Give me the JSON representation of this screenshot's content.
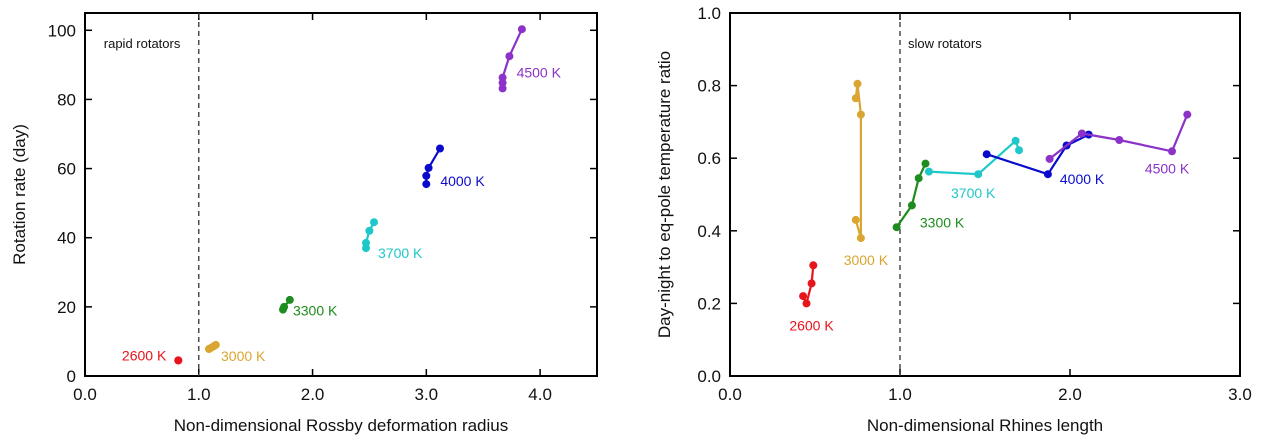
{
  "chart_data": [
    {
      "type": "line",
      "xlabel": "Non-dimensional Rossby deformation radius",
      "ylabel": "Rotation rate (day)",
      "xlim": [
        0.0,
        4.5
      ],
      "ylim": [
        0,
        105
      ],
      "xticks": [
        "0.0",
        "1.0",
        "2.0",
        "3.0",
        "4.0"
      ],
      "xtick_values": [
        0,
        1,
        2,
        3,
        4
      ],
      "yticks": [
        "0",
        "20",
        "40",
        "60",
        "80",
        "100"
      ],
      "ytick_values": [
        0,
        20,
        40,
        60,
        80,
        100
      ],
      "reference_line": {
        "x": 1.0,
        "style": "dashed",
        "label": "rapid rotators"
      },
      "grid": false,
      "series": [
        {
          "name": "2600 K",
          "color": "#e8141c",
          "points": [
            [
              0.82,
              4.5
            ],
            [
              0.82,
              4.5
            ]
          ]
        },
        {
          "name": "3000 K",
          "color": "#daa530",
          "points": [
            [
              1.09,
              7.8
            ],
            [
              1.11,
              8.2
            ],
            [
              1.13,
              8.6
            ],
            [
              1.15,
              9.0
            ]
          ]
        },
        {
          "name": "3300 K",
          "color": "#1e8c1e",
          "points": [
            [
              1.74,
              19.2
            ],
            [
              1.75,
              20.0
            ],
            [
              1.8,
              22.0
            ]
          ]
        },
        {
          "name": "3700 K",
          "color": "#1ec8c8",
          "points": [
            [
              2.47,
              37.0
            ],
            [
              2.47,
              38.5
            ],
            [
              2.5,
              42.0
            ],
            [
              2.54,
              44.5
            ]
          ]
        },
        {
          "name": "4000 K",
          "color": "#0a0acd",
          "points": [
            [
              3.0,
              55.5
            ],
            [
              3.0,
              57.9
            ],
            [
              3.02,
              60.2
            ],
            [
              3.12,
              65.8
            ]
          ]
        },
        {
          "name": "4500 K",
          "color": "#8c32c8",
          "points": [
            [
              3.67,
              83.2
            ],
            [
              3.67,
              84.8
            ],
            [
              3.67,
              86.3
            ],
            [
              3.73,
              92.5
            ],
            [
              3.84,
              100.3
            ]
          ]
        }
      ]
    },
    {
      "type": "line",
      "xlabel": "Non-dimensional Rhines length",
      "ylabel": "Day-night to eq-pole temperature ratio",
      "xlim": [
        0.0,
        3.0
      ],
      "ylim": [
        0.0,
        1.0
      ],
      "xticks": [
        "0.0",
        "1.0",
        "2.0",
        "3.0"
      ],
      "xtick_values": [
        0,
        1,
        2,
        3
      ],
      "yticks": [
        "0.0",
        "0.2",
        "0.4",
        "0.6",
        "0.8",
        "1.0"
      ],
      "ytick_values": [
        0,
        0.2,
        0.4,
        0.6,
        0.8,
        1.0
      ],
      "reference_line": {
        "x": 1.0,
        "style": "dashed",
        "label": "slow rotators"
      },
      "grid": false,
      "series": [
        {
          "name": "2600 K",
          "color": "#e8141c",
          "points": [
            [
              0.43,
              0.22
            ],
            [
              0.45,
              0.2
            ],
            [
              0.48,
              0.255
            ],
            [
              0.49,
              0.305
            ]
          ]
        },
        {
          "name": "3000 K",
          "color": "#daa530",
          "points": [
            [
              0.74,
              0.765
            ],
            [
              0.75,
              0.805
            ],
            [
              0.77,
              0.72
            ],
            [
              0.77,
              0.38
            ],
            [
              0.74,
              0.43
            ]
          ]
        },
        {
          "name": "3300 K",
          "color": "#1e8c1e",
          "points": [
            [
              0.98,
              0.41
            ],
            [
              1.07,
              0.47
            ],
            [
              1.11,
              0.545
            ],
            [
              1.15,
              0.585
            ]
          ]
        },
        {
          "name": "3700 K",
          "color": "#1ec8c8",
          "points": [
            [
              1.17,
              0.563
            ],
            [
              1.46,
              0.556
            ],
            [
              1.68,
              0.648
            ],
            [
              1.7,
              0.622
            ]
          ]
        },
        {
          "name": "4000 K",
          "color": "#0a0acd",
          "points": [
            [
              1.51,
              0.611
            ],
            [
              1.87,
              0.556
            ],
            [
              1.98,
              0.635
            ],
            [
              2.11,
              0.665
            ]
          ]
        },
        {
          "name": "4500 K",
          "color": "#8c32c8",
          "points": [
            [
              1.88,
              0.598
            ],
            [
              2.07,
              0.668
            ],
            [
              2.29,
              0.65
            ],
            [
              2.6,
              0.619
            ],
            [
              2.69,
              0.72
            ]
          ]
        }
      ]
    }
  ]
}
